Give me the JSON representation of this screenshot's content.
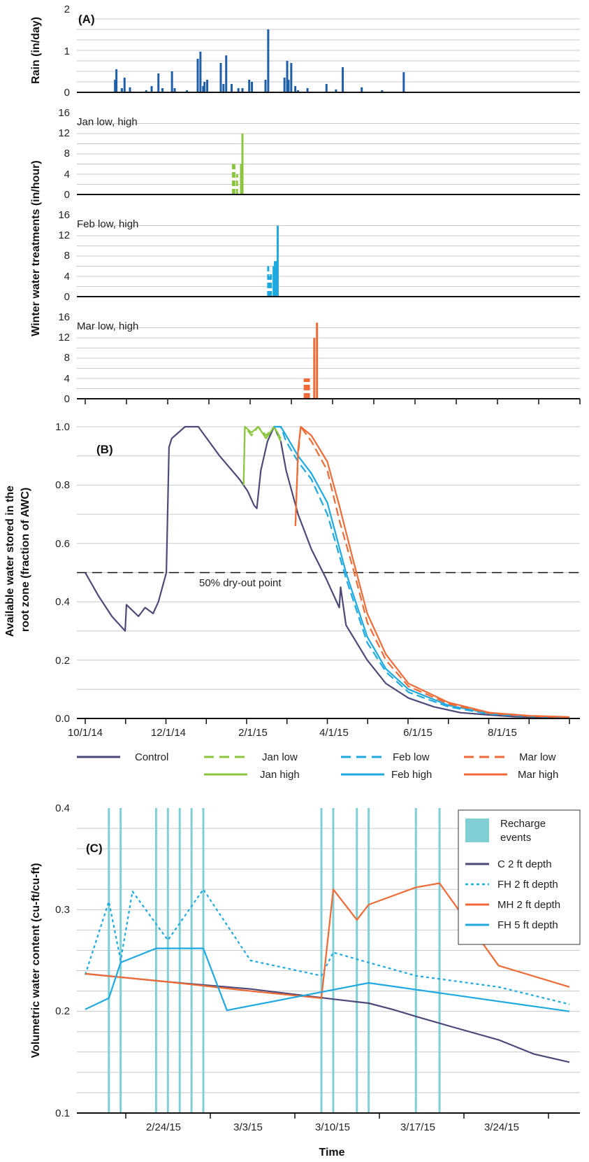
{
  "colors": {
    "control": "#4b4a78",
    "jan": "#8cc63f",
    "feb": "#1ea9e1",
    "mar": "#ef6a35",
    "rain": "#1f5fa8",
    "recharge": "#7fcfd4",
    "grid": "#c8c8c8",
    "dryout": "#111111"
  },
  "chart_data": [
    {
      "type": "bar",
      "panel": "(A)",
      "ylabel": "Rain (in/day)",
      "ylim": [
        0,
        2
      ],
      "yticks": [
        "0",
        "1",
        "2"
      ],
      "x_units": "days since 10/1/14",
      "xlim": [
        0,
        365
      ],
      "series": [
        {
          "x": [
            22,
            23,
            27,
            29,
            33,
            45,
            49,
            54,
            57,
            64,
            66,
            75,
            83,
            85,
            87,
            88,
            90,
            100,
            102,
            104,
            108,
            113,
            116,
            121,
            123,
            133,
            135,
            147,
            149,
            150,
            152,
            155,
            157,
            164,
            178,
            185,
            190,
            204,
            219,
            235
          ],
          "values": [
            0.3,
            0.55,
            0.1,
            0.35,
            0.12,
            0.05,
            0.15,
            0.45,
            0.1,
            0.5,
            0.1,
            0.05,
            0.8,
            0.97,
            0.15,
            0.25,
            0.3,
            0.7,
            0.2,
            0.88,
            0.2,
            0.1,
            0.1,
            0.3,
            0.25,
            0.3,
            1.5,
            0.35,
            0.75,
            0.3,
            0.7,
            0.15,
            0.05,
            0.1,
            0.2,
            0.07,
            0.6,
            0.12,
            0.05,
            0.48
          ]
        }
      ]
    },
    {
      "type": "bar",
      "panel": "Jan low, high",
      "ylim": [
        0,
        16
      ],
      "yticks": [
        "0",
        "4",
        "8",
        "12",
        "16"
      ],
      "x_units": "days since 10/1/14",
      "xlim": [
        0,
        365
      ],
      "series": [
        {
          "name": "Jan low",
          "x": [
            109,
            110,
            112
          ],
          "values": [
            6,
            6,
            4
          ]
        },
        {
          "name": "Jan high",
          "x": [
            115,
            116
          ],
          "values": [
            6,
            12
          ]
        }
      ]
    },
    {
      "type": "bar",
      "panel": "Feb low, high",
      "ylim": [
        0,
        16
      ],
      "yticks": [
        "0",
        "4",
        "8",
        "12",
        "16"
      ],
      "x_units": "days since 10/1/14",
      "xlim": [
        0,
        365
      ],
      "series": [
        {
          "name": "Feb low",
          "x": [
            135,
            136,
            137
          ],
          "values": [
            6,
            4,
            5
          ]
        },
        {
          "name": "Feb high",
          "x": [
            139,
            140,
            141,
            142
          ],
          "values": [
            6,
            7,
            7,
            14
          ]
        }
      ]
    },
    {
      "type": "bar",
      "panel": "Mar low, high",
      "ylim": [
        0,
        16
      ],
      "yticks": [
        "0",
        "4",
        "8",
        "12",
        "16"
      ],
      "x_units": "days since 10/1/14",
      "xlim": [
        0,
        365
      ],
      "series": [
        {
          "name": "Mar low",
          "x": [
            162,
            163,
            164,
            165
          ],
          "values": [
            4,
            4,
            4,
            4
          ]
        },
        {
          "name": "Mar high",
          "x": [
            169,
            171
          ],
          "values": [
            12,
            15
          ]
        }
      ]
    },
    {
      "type": "line",
      "panel": "(B)",
      "ylabel": "Available water stored in the root zone (fraction of AWC)",
      "ylim": [
        0,
        1
      ],
      "yticks": [
        "0.0",
        "0.2",
        "0.4",
        "0.6",
        "0.8",
        "1.0"
      ],
      "xlim": [
        "10/1/14",
        "9/30/15"
      ],
      "xticks": [
        "10/1/14",
        "12/1/14",
        "2/1/15",
        "4/1/15",
        "6/1/15",
        "8/1/15"
      ],
      "annotation": "50% dry-out point",
      "dryout_level": 0.5,
      "series": [
        {
          "name": "Control",
          "style": "solid",
          "color_key": "control",
          "x": [
            "10/1/14",
            "10/11/14",
            "10/21/14",
            "10/31/14",
            "11/1/14",
            "11/10/14",
            "11/15/14",
            "11/21/14",
            "11/25/14",
            "12/1/14",
            "12/3/14",
            "12/5/14",
            "12/15/14",
            "12/25/14",
            "1/10/15",
            "1/25/15",
            "1/31/15",
            "2/5/15",
            "2/7/15",
            "2/10/15",
            "2/15/15",
            "2/20/15",
            "2/25/15",
            "3/1/15",
            "3/10/15",
            "3/20/15",
            "3/31/15",
            "4/10/15",
            "4/11/15",
            "4/15/15",
            "5/1/15",
            "5/15/15",
            "6/1/15",
            "6/20/15",
            "7/10/15",
            "8/1/15",
            "8/20/15",
            "9/10/15",
            "9/30/15"
          ],
          "y": [
            0.5,
            0.42,
            0.35,
            0.3,
            0.39,
            0.35,
            0.38,
            0.36,
            0.4,
            0.5,
            0.93,
            0.96,
            1.0,
            1.0,
            0.9,
            0.82,
            0.78,
            0.73,
            0.72,
            0.85,
            0.95,
            1.0,
            0.95,
            0.85,
            0.7,
            0.58,
            0.48,
            0.38,
            0.45,
            0.32,
            0.2,
            0.12,
            0.07,
            0.04,
            0.02,
            0.012,
            0.006,
            0.004,
            0.003
          ]
        },
        {
          "name": "Jan low",
          "style": "dash",
          "color_key": "jan",
          "x": [
            "1/28/15",
            "1/29/15",
            "2/3/15",
            "2/8/15",
            "2/14/15",
            "2/20/15",
            "2/25/15"
          ],
          "y": [
            0.8,
            1.0,
            0.97,
            1.0,
            0.97,
            1.0,
            0.95
          ]
        },
        {
          "name": "Jan high",
          "style": "solid",
          "color_key": "jan",
          "x": [
            "1/28/15",
            "1/29/15",
            "2/3/15",
            "2/8/15",
            "2/14/15",
            "2/20/15",
            "2/25/15"
          ],
          "y": [
            0.8,
            1.0,
            0.98,
            1.0,
            0.96,
            1.0,
            0.96
          ]
        },
        {
          "name": "Feb low",
          "style": "dash",
          "color_key": "feb",
          "x": [
            "2/20/15",
            "2/25/15",
            "3/1/15",
            "3/10/15",
            "3/20/15",
            "4/1/15",
            "4/15/15",
            "5/1/15",
            "5/15/15",
            "6/1/15",
            "7/1/15",
            "8/1/15",
            "9/1/15",
            "9/30/15"
          ],
          "y": [
            1.0,
            1.0,
            0.95,
            0.88,
            0.82,
            0.7,
            0.48,
            0.26,
            0.16,
            0.09,
            0.04,
            0.015,
            0.007,
            0.004
          ]
        },
        {
          "name": "Feb high",
          "style": "solid",
          "color_key": "feb",
          "x": [
            "2/20/15",
            "2/25/15",
            "3/1/15",
            "3/10/15",
            "3/20/15",
            "4/1/15",
            "4/15/15",
            "5/1/15",
            "5/15/15",
            "6/1/15",
            "7/1/15",
            "8/1/15",
            "9/1/15",
            "9/30/15"
          ],
          "y": [
            1.0,
            1.0,
            0.97,
            0.9,
            0.84,
            0.74,
            0.5,
            0.28,
            0.17,
            0.1,
            0.045,
            0.017,
            0.008,
            0.004
          ]
        },
        {
          "name": "Mar low",
          "style": "dash",
          "color_key": "mar",
          "x": [
            "3/8/15",
            "3/10/15",
            "3/12/15",
            "3/20/15",
            "4/1/15",
            "4/10/15",
            "4/20/15",
            "5/1/15",
            "5/15/15",
            "6/1/15",
            "7/1/15",
            "8/1/15",
            "9/1/15",
            "9/30/15"
          ],
          "y": [
            0.66,
            0.9,
            1.0,
            0.95,
            0.85,
            0.68,
            0.52,
            0.33,
            0.2,
            0.11,
            0.05,
            0.018,
            0.008,
            0.004
          ]
        },
        {
          "name": "Mar high",
          "style": "solid",
          "color_key": "mar",
          "x": [
            "3/8/15",
            "3/10/15",
            "3/12/15",
            "3/20/15",
            "4/1/15",
            "4/10/15",
            "4/20/15",
            "5/1/15",
            "5/15/15",
            "6/1/15",
            "7/1/15",
            "8/1/15",
            "9/1/15",
            "9/30/15"
          ],
          "y": [
            0.66,
            0.92,
            1.0,
            0.97,
            0.88,
            0.73,
            0.55,
            0.36,
            0.22,
            0.12,
            0.055,
            0.02,
            0.009,
            0.005
          ]
        }
      ]
    },
    {
      "type": "line",
      "panel": "(C)",
      "ylabel": "Volumetric water content (cu-ft/cu-ft)",
      "xlabel": "Time",
      "ylim": [
        0.1,
        0.4
      ],
      "yticks": [
        "0.1",
        "0.2",
        "0.3",
        "0.4"
      ],
      "xlim": [
        "2/17/15",
        "3/30/15"
      ],
      "xticks": [
        "2/24/15",
        "3/3/15",
        "3/10/15",
        "3/17/15",
        "3/24/15"
      ],
      "recharge_events": [
        "2/19/15",
        "2/20/15",
        "2/23/15",
        "2/24/15",
        "2/25/15",
        "2/26/15",
        "2/27/15",
        "3/9/15",
        "3/10/15",
        "3/12/15",
        "3/13/15",
        "3/17/15",
        "3/19/15"
      ],
      "series": [
        {
          "name": "C 2 ft depth",
          "style": "solid",
          "color_key": "control",
          "x": [
            "2/17/15",
            "2/24/15",
            "3/3/15",
            "3/10/15",
            "3/13/15",
            "3/15/15",
            "3/17/15",
            "3/20/15",
            "3/24/15",
            "3/27/15",
            "3/30/15"
          ],
          "y": [
            0.237,
            0.229,
            0.222,
            0.212,
            0.208,
            0.202,
            0.195,
            0.185,
            0.172,
            0.158,
            0.15
          ]
        },
        {
          "name": "FH 2 ft depth",
          "style": "dot",
          "color_key": "feb",
          "x": [
            "2/17/15",
            "2/19/15",
            "2/20/15",
            "2/21/15",
            "2/24/15",
            "2/27/15",
            "3/3/15",
            "3/9/15",
            "3/10/15",
            "3/13/15",
            "3/17/15",
            "3/24/15",
            "3/30/15"
          ],
          "y": [
            0.236,
            0.308,
            0.25,
            0.318,
            0.27,
            0.32,
            0.25,
            0.235,
            0.258,
            0.248,
            0.235,
            0.224,
            0.207
          ]
        },
        {
          "name": "MH 2 ft depth",
          "style": "solid",
          "color_key": "mar",
          "x": [
            "2/17/15",
            "2/24/15",
            "3/3/15",
            "3/9/15",
            "3/10/15",
            "3/12/15",
            "3/13/15",
            "3/17/15",
            "3/19/15",
            "3/24/15",
            "3/30/15"
          ],
          "y": [
            0.237,
            0.229,
            0.22,
            0.213,
            0.32,
            0.29,
            0.305,
            0.322,
            0.326,
            0.245,
            0.224
          ]
        },
        {
          "name": "FH 5 ft depth",
          "style": "solid",
          "color_key": "feb",
          "x": [
            "2/17/15",
            "2/19/15",
            "2/20/15",
            "2/23/15",
            "2/24/15",
            "2/25/15",
            "2/26/15",
            "2/27/15",
            "3/1/15",
            "3/13/15",
            "3/30/15"
          ],
          "y": [
            0.202,
            0.213,
            0.248,
            0.262,
            0.262,
            0.262,
            0.262,
            0.262,
            0.201,
            0.228,
            0.2
          ]
        }
      ]
    }
  ],
  "ylabel_treatments": "Winter water treatments (in/hour)",
  "legend_b": [
    "Control",
    "Jan low",
    "Jan high",
    "Feb low",
    "Feb high",
    "Mar low",
    "Mar high"
  ],
  "legend_c": [
    "Recharge events",
    "C 2 ft depth",
    "FH 2 ft depth",
    "MH 2 ft depth",
    "FH 5 ft depth"
  ]
}
